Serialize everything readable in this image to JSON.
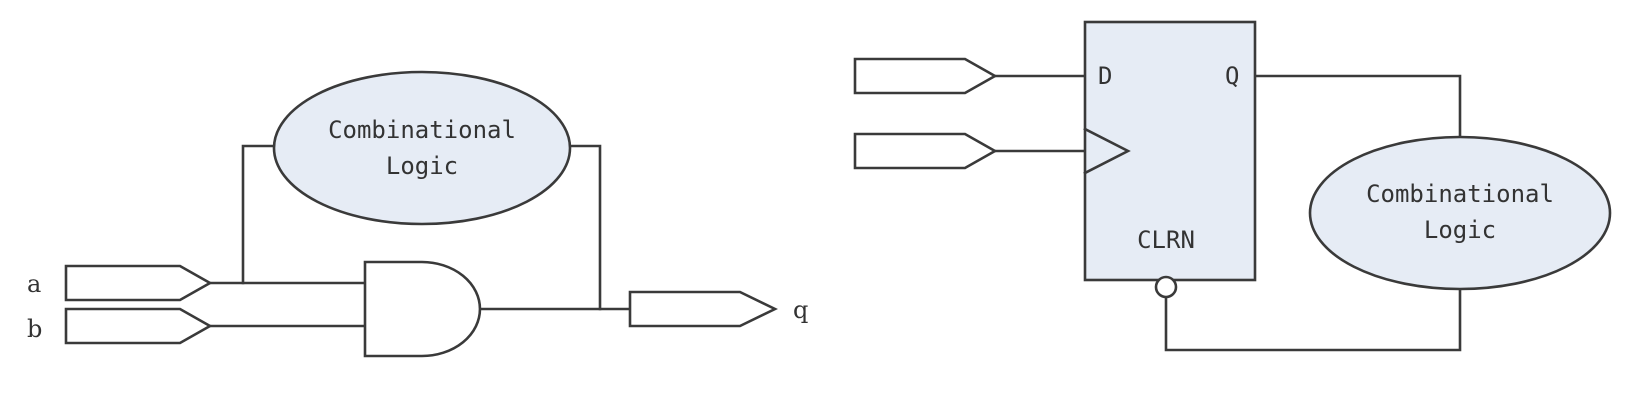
{
  "left_circuit": {
    "input_a": "a",
    "input_b": "b",
    "output_q": "q",
    "logic_block": {
      "line1": "Combinational",
      "line2": "Logic"
    }
  },
  "right_circuit": {
    "flipflop": {
      "d_pin": "D",
      "q_pin": "Q",
      "clrn_pin": "CLRN"
    },
    "logic_block": {
      "line1": "Combinational",
      "line2": "Logic"
    }
  },
  "colors": {
    "block_fill": "#e6ecf5",
    "stroke": "#3a3a3a",
    "background": "#ffffff"
  }
}
